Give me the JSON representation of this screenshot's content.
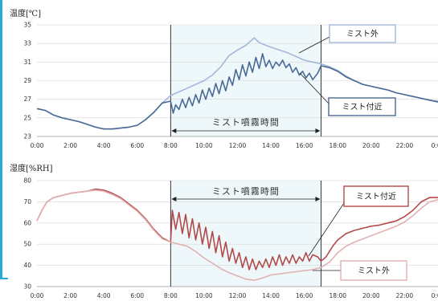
{
  "chart_data": [
    {
      "type": "line",
      "title": "温度[℃]",
      "ylim": [
        23,
        35
      ],
      "yticks": [
        "23",
        "25",
        "27",
        "29",
        "31",
        "33",
        "35"
      ],
      "x_tick_labels": [
        "0:00",
        "2:00",
        "4:00",
        "6:00",
        "8:00",
        "10:00",
        "12:00",
        "14:00",
        "16:00",
        "18:00",
        "20:00",
        "22:00",
        "0:00"
      ],
      "xlim_hours": [
        0,
        24
      ],
      "mist_period_hours": [
        8,
        17
      ],
      "mist_period_label": "ミスト噴霧時間",
      "grid": true,
      "series": [
        {
          "name": "ミスト外",
          "color": "#a3b7d8",
          "points": [
            [
              0,
              26.0
            ],
            [
              0.5,
              25.8
            ],
            [
              1,
              25.3
            ],
            [
              1.5,
              25.0
            ],
            [
              2,
              24.8
            ],
            [
              2.5,
              24.6
            ],
            [
              3,
              24.3
            ],
            [
              3.5,
              24.0
            ],
            [
              4,
              23.8
            ],
            [
              4.5,
              23.8
            ],
            [
              5,
              23.9
            ],
            [
              5.5,
              24.0
            ],
            [
              6,
              24.2
            ],
            [
              6.5,
              24.8
            ],
            [
              7,
              25.6
            ],
            [
              7.5,
              26.6
            ],
            [
              8,
              27.4
            ],
            [
              8.5,
              27.8
            ],
            [
              9,
              28.2
            ],
            [
              9.5,
              28.6
            ],
            [
              10,
              29.0
            ],
            [
              10.5,
              29.6
            ],
            [
              11,
              30.5
            ],
            [
              11.5,
              31.7
            ],
            [
              12,
              32.3
            ],
            [
              12.5,
              32.8
            ],
            [
              13,
              33.6
            ],
            [
              13.3,
              33.1
            ],
            [
              13.7,
              32.8
            ],
            [
              14,
              32.6
            ],
            [
              14.5,
              32.3
            ],
            [
              15,
              32.0
            ],
            [
              15.5,
              31.6
            ],
            [
              16,
              31.2
            ],
            [
              16.5,
              31.0
            ],
            [
              17,
              30.8
            ],
            [
              17.5,
              30.5
            ],
            [
              18,
              30.1
            ],
            [
              18.5,
              29.5
            ],
            [
              19,
              29.0
            ],
            [
              19.5,
              28.6
            ],
            [
              20,
              28.4
            ],
            [
              20.5,
              28.2
            ],
            [
              21,
              28.0
            ],
            [
              21.5,
              27.7
            ],
            [
              22,
              27.5
            ],
            [
              22.5,
              27.3
            ],
            [
              23,
              27.1
            ],
            [
              23.5,
              26.9
            ],
            [
              24,
              26.8
            ]
          ]
        },
        {
          "name": "ミスト付近",
          "color": "#4a6a96",
          "points": [
            [
              0,
              26.0
            ],
            [
              0.5,
              25.8
            ],
            [
              1,
              25.3
            ],
            [
              1.5,
              25.0
            ],
            [
              2,
              24.8
            ],
            [
              2.5,
              24.6
            ],
            [
              3,
              24.3
            ],
            [
              3.5,
              24.0
            ],
            [
              4,
              23.8
            ],
            [
              4.5,
              23.8
            ],
            [
              5,
              23.9
            ],
            [
              5.5,
              24.0
            ],
            [
              6,
              24.2
            ],
            [
              6.5,
              24.8
            ],
            [
              7,
              25.6
            ],
            [
              7.5,
              26.6
            ],
            [
              8,
              26.8
            ],
            [
              8.15,
              25.5
            ],
            [
              8.3,
              26.4
            ],
            [
              8.5,
              25.9
            ],
            [
              8.7,
              27.0
            ],
            [
              8.9,
              26.1
            ],
            [
              9.1,
              27.2
            ],
            [
              9.3,
              26.3
            ],
            [
              9.5,
              27.5
            ],
            [
              9.7,
              26.6
            ],
            [
              9.9,
              28.0
            ],
            [
              10.1,
              27.0
            ],
            [
              10.3,
              28.2
            ],
            [
              10.5,
              27.3
            ],
            [
              10.7,
              28.7
            ],
            [
              10.9,
              27.6
            ],
            [
              11.1,
              29.0
            ],
            [
              11.3,
              27.9
            ],
            [
              11.5,
              29.4
            ],
            [
              11.7,
              28.5
            ],
            [
              11.9,
              30.2
            ],
            [
              12.1,
              29.1
            ],
            [
              12.3,
              30.7
            ],
            [
              12.5,
              29.5
            ],
            [
              12.7,
              31.0
            ],
            [
              12.9,
              29.9
            ],
            [
              13.1,
              31.5
            ],
            [
              13.3,
              30.3
            ],
            [
              13.5,
              31.9
            ],
            [
              13.7,
              30.5
            ],
            [
              13.9,
              31.2
            ],
            [
              14.1,
              30.3
            ],
            [
              14.3,
              31.0
            ],
            [
              14.5,
              30.6
            ],
            [
              14.7,
              31.2
            ],
            [
              14.9,
              30.4
            ],
            [
              15.1,
              30.8
            ],
            [
              15.3,
              29.9
            ],
            [
              15.5,
              30.4
            ],
            [
              15.7,
              29.6
            ],
            [
              15.9,
              30.0
            ],
            [
              16.1,
              29.3
            ],
            [
              16.3,
              29.8
            ],
            [
              16.5,
              29.1
            ],
            [
              16.8,
              29.8
            ],
            [
              17,
              30.6
            ],
            [
              17.5,
              30.4
            ],
            [
              18,
              30.0
            ],
            [
              18.5,
              29.4
            ],
            [
              19,
              29.0
            ],
            [
              19.5,
              28.6
            ],
            [
              20,
              28.4
            ],
            [
              20.5,
              28.2
            ],
            [
              21,
              28.0
            ],
            [
              21.5,
              27.7
            ],
            [
              22,
              27.5
            ],
            [
              22.5,
              27.3
            ],
            [
              23,
              27.1
            ],
            [
              23.5,
              26.9
            ],
            [
              24,
              26.7
            ]
          ]
        }
      ],
      "callouts": [
        {
          "label": "ミスト外",
          "color": "#a3b7d8"
        },
        {
          "label": "ミスト付近",
          "color": "#4a6a96"
        }
      ]
    },
    {
      "type": "line",
      "title": "湿度[%RH]",
      "ylim": [
        30,
        80
      ],
      "yticks": [
        "30",
        "40",
        "50",
        "60",
        "70",
        "80"
      ],
      "x_tick_labels": [
        "0:00",
        "2:00",
        "4:00",
        "6:00",
        "8:00",
        "10:00",
        "12:00",
        "14:00",
        "16:00",
        "18:00",
        "20:00",
        "22:00",
        "0:00"
      ],
      "xlim_hours": [
        0,
        24
      ],
      "mist_period_hours": [
        8,
        17
      ],
      "mist_period_label": "ミスト噴霧時間",
      "grid": true,
      "series": [
        {
          "name": "ミスト付近",
          "color": "#b34a4a",
          "points": [
            [
              0,
              61
            ],
            [
              0.3,
              66
            ],
            [
              0.6,
              70
            ],
            [
              1,
              72
            ],
            [
              1.5,
              73
            ],
            [
              2,
              74
            ],
            [
              2.5,
              74.5
            ],
            [
              3,
              75
            ],
            [
              3.5,
              76
            ],
            [
              4,
              75.5
            ],
            [
              4.5,
              74
            ],
            [
              5,
              72
            ],
            [
              5.5,
              69
            ],
            [
              6,
              66
            ],
            [
              6.5,
              62
            ],
            [
              7,
              57
            ],
            [
              7.5,
              53
            ],
            [
              8,
              51
            ],
            [
              8.1,
              66
            ],
            [
              8.3,
              57
            ],
            [
              8.5,
              65
            ],
            [
              8.7,
              55
            ],
            [
              8.9,
              64
            ],
            [
              9.1,
              53
            ],
            [
              9.3,
              62
            ],
            [
              9.5,
              52
            ],
            [
              9.7,
              60
            ],
            [
              9.9,
              50
            ],
            [
              10.1,
              58
            ],
            [
              10.3,
              48
            ],
            [
              10.5,
              56
            ],
            [
              10.7,
              46
            ],
            [
              10.9,
              54
            ],
            [
              11.1,
              44
            ],
            [
              11.3,
              51
            ],
            [
              11.5,
              42
            ],
            [
              11.7,
              48
            ],
            [
              11.9,
              41
            ],
            [
              12.1,
              46
            ],
            [
              12.3,
              39
            ],
            [
              12.5,
              44
            ],
            [
              12.7,
              38
            ],
            [
              12.9,
              43
            ],
            [
              13.1,
              38
            ],
            [
              13.3,
              42
            ],
            [
              13.5,
              39
            ],
            [
              13.7,
              43
            ],
            [
              13.9,
              39
            ],
            [
              14.1,
              44
            ],
            [
              14.3,
              40
            ],
            [
              14.5,
              45
            ],
            [
              14.7,
              40
            ],
            [
              14.9,
              44
            ],
            [
              15.1,
              41
            ],
            [
              15.3,
              45
            ],
            [
              15.5,
              41
            ],
            [
              15.7,
              44
            ],
            [
              15.9,
              42
            ],
            [
              16.1,
              46
            ],
            [
              16.3,
              42
            ],
            [
              16.5,
              45
            ],
            [
              16.8,
              44
            ],
            [
              17,
              42
            ],
            [
              17.3,
              44
            ],
            [
              17.7,
              49
            ],
            [
              18,
              52
            ],
            [
              18.5,
              55
            ],
            [
              19,
              56.5
            ],
            [
              19.5,
              57.5
            ],
            [
              20,
              58.5
            ],
            [
              20.5,
              59
            ],
            [
              21,
              60
            ],
            [
              21.5,
              61
            ],
            [
              22,
              63
            ],
            [
              22.5,
              66
            ],
            [
              23,
              70
            ],
            [
              23.5,
              72
            ],
            [
              24,
              72
            ]
          ]
        },
        {
          "name": "ミスト外",
          "color": "#e2b1b1",
          "points": [
            [
              0,
              61
            ],
            [
              0.3,
              66
            ],
            [
              0.6,
              70
            ],
            [
              1,
              72
            ],
            [
              1.5,
              73
            ],
            [
              2,
              74
            ],
            [
              2.5,
              74.5
            ],
            [
              3,
              75
            ],
            [
              3.5,
              75.5
            ],
            [
              4,
              75
            ],
            [
              4.5,
              73.5
            ],
            [
              5,
              71.5
            ],
            [
              5.5,
              68.5
            ],
            [
              6,
              65.5
            ],
            [
              6.5,
              61.5
            ],
            [
              7,
              56.5
            ],
            [
              7.5,
              52.5
            ],
            [
              8,
              51
            ],
            [
              8.5,
              50
            ],
            [
              9,
              49
            ],
            [
              9.5,
              46.5
            ],
            [
              10,
              43.5
            ],
            [
              10.5,
              41
            ],
            [
              11,
              38.5
            ],
            [
              11.5,
              36.5
            ],
            [
              12,
              35
            ],
            [
              12.5,
              33.5
            ],
            [
              13,
              33
            ],
            [
              13.5,
              34
            ],
            [
              14,
              35.5
            ],
            [
              14.5,
              36
            ],
            [
              15,
              36.5
            ],
            [
              15.5,
              37
            ],
            [
              16,
              37.5
            ],
            [
              16.5,
              38
            ],
            [
              17,
              39
            ],
            [
              17.5,
              41.5
            ],
            [
              18,
              46
            ],
            [
              18.5,
              49
            ],
            [
              19,
              51
            ],
            [
              19.5,
              52.5
            ],
            [
              20,
              54
            ],
            [
              20.5,
              55.5
            ],
            [
              21,
              57
            ],
            [
              21.5,
              58.5
            ],
            [
              22,
              60.5
            ],
            [
              22.5,
              63.5
            ],
            [
              23,
              67
            ],
            [
              23.5,
              70
            ],
            [
              24,
              71
            ]
          ]
        }
      ],
      "callouts": [
        {
          "label": "ミスト付近",
          "color": "#b34a4a"
        },
        {
          "label": "ミスト外",
          "color": "#e2b1b1"
        }
      ]
    }
  ]
}
